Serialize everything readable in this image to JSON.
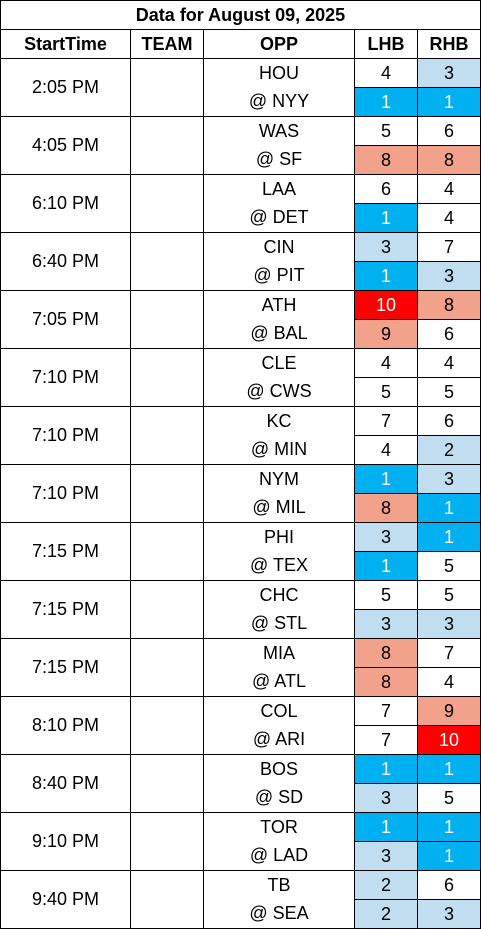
{
  "title": "Data for August 09, 2025",
  "headers": [
    "StartTime",
    "TEAM",
    "OPP",
    "LHB",
    "RHB"
  ],
  "colors": {
    "white": "#ffffff",
    "light_blue": "#c0def0",
    "blue": "#00b0f0",
    "salmon": "#f2a28a",
    "red": "#ff0000"
  },
  "games": [
    {
      "time": "2:05 PM",
      "rows": [
        {
          "opp": "HOU",
          "lhb": "4",
          "lhb_c": "white",
          "rhb": "3",
          "rhb_c": "lblue"
        },
        {
          "opp": "@ NYY",
          "lhb": "1",
          "lhb_c": "blue",
          "rhb": "1",
          "rhb_c": "blue"
        }
      ]
    },
    {
      "time": "4:05 PM",
      "rows": [
        {
          "opp": "WAS",
          "lhb": "5",
          "lhb_c": "white",
          "rhb": "6",
          "rhb_c": "white"
        },
        {
          "opp": "@ SF",
          "lhb": "8",
          "lhb_c": "salmon",
          "rhb": "8",
          "rhb_c": "salmon"
        }
      ]
    },
    {
      "time": "6:10 PM",
      "rows": [
        {
          "opp": "LAA",
          "lhb": "6",
          "lhb_c": "white",
          "rhb": "4",
          "rhb_c": "white"
        },
        {
          "opp": "@ DET",
          "lhb": "1",
          "lhb_c": "blue",
          "rhb": "4",
          "rhb_c": "white"
        }
      ]
    },
    {
      "time": "6:40 PM",
      "rows": [
        {
          "opp": "CIN",
          "lhb": "3",
          "lhb_c": "lblue",
          "rhb": "7",
          "rhb_c": "white"
        },
        {
          "opp": "@ PIT",
          "lhb": "1",
          "lhb_c": "blue",
          "rhb": "3",
          "rhb_c": "lblue"
        }
      ]
    },
    {
      "time": "7:05 PM",
      "rows": [
        {
          "opp": "ATH",
          "lhb": "10",
          "lhb_c": "red",
          "rhb": "8",
          "rhb_c": "salmon"
        },
        {
          "opp": "@ BAL",
          "lhb": "9",
          "lhb_c": "salmon",
          "rhb": "6",
          "rhb_c": "white"
        }
      ]
    },
    {
      "time": "7:10 PM",
      "rows": [
        {
          "opp": "CLE",
          "lhb": "4",
          "lhb_c": "white",
          "rhb": "4",
          "rhb_c": "white"
        },
        {
          "opp": "@ CWS",
          "lhb": "5",
          "lhb_c": "white",
          "rhb": "5",
          "rhb_c": "white"
        }
      ]
    },
    {
      "time": "7:10 PM",
      "rows": [
        {
          "opp": "KC",
          "lhb": "7",
          "lhb_c": "white",
          "rhb": "6",
          "rhb_c": "white"
        },
        {
          "opp": "@ MIN",
          "lhb": "4",
          "lhb_c": "white",
          "rhb": "2",
          "rhb_c": "lblue"
        }
      ]
    },
    {
      "time": "7:10 PM",
      "rows": [
        {
          "opp": "NYM",
          "lhb": "1",
          "lhb_c": "blue",
          "rhb": "3",
          "rhb_c": "lblue"
        },
        {
          "opp": "@ MIL",
          "lhb": "8",
          "lhb_c": "salmon",
          "rhb": "1",
          "rhb_c": "blue"
        }
      ]
    },
    {
      "time": "7:15 PM",
      "rows": [
        {
          "opp": "PHI",
          "lhb": "3",
          "lhb_c": "lblue",
          "rhb": "1",
          "rhb_c": "blue"
        },
        {
          "opp": "@ TEX",
          "lhb": "1",
          "lhb_c": "blue",
          "rhb": "5",
          "rhb_c": "white"
        }
      ]
    },
    {
      "time": "7:15 PM",
      "rows": [
        {
          "opp": "CHC",
          "lhb": "5",
          "lhb_c": "white",
          "rhb": "5",
          "rhb_c": "white"
        },
        {
          "opp": "@ STL",
          "lhb": "3",
          "lhb_c": "lblue",
          "rhb": "3",
          "rhb_c": "lblue"
        }
      ]
    },
    {
      "time": "7:15 PM",
      "rows": [
        {
          "opp": "MIA",
          "lhb": "8",
          "lhb_c": "salmon",
          "rhb": "7",
          "rhb_c": "white"
        },
        {
          "opp": "@ ATL",
          "lhb": "8",
          "lhb_c": "salmon",
          "rhb": "4",
          "rhb_c": "white"
        }
      ]
    },
    {
      "time": "8:10 PM",
      "rows": [
        {
          "opp": "COL",
          "lhb": "7",
          "lhb_c": "white",
          "rhb": "9",
          "rhb_c": "salmon"
        },
        {
          "opp": "@ ARI",
          "lhb": "7",
          "lhb_c": "white",
          "rhb": "10",
          "rhb_c": "red"
        }
      ]
    },
    {
      "time": "8:40 PM",
      "rows": [
        {
          "opp": "BOS",
          "lhb": "1",
          "lhb_c": "blue",
          "rhb": "1",
          "rhb_c": "blue"
        },
        {
          "opp": "@ SD",
          "lhb": "3",
          "lhb_c": "lblue",
          "rhb": "5",
          "rhb_c": "white"
        }
      ]
    },
    {
      "time": "9:10 PM",
      "rows": [
        {
          "opp": "TOR",
          "lhb": "1",
          "lhb_c": "blue",
          "rhb": "1",
          "rhb_c": "blue"
        },
        {
          "opp": "@ LAD",
          "lhb": "3",
          "lhb_c": "lblue",
          "rhb": "1",
          "rhb_c": "blue"
        }
      ]
    },
    {
      "time": "9:40 PM",
      "rows": [
        {
          "opp": "TB",
          "lhb": "2",
          "lhb_c": "lblue",
          "rhb": "6",
          "rhb_c": "white"
        },
        {
          "opp": "@ SEA",
          "lhb": "2",
          "lhb_c": "lblue",
          "rhb": "3",
          "rhb_c": "lblue"
        }
      ]
    }
  ]
}
